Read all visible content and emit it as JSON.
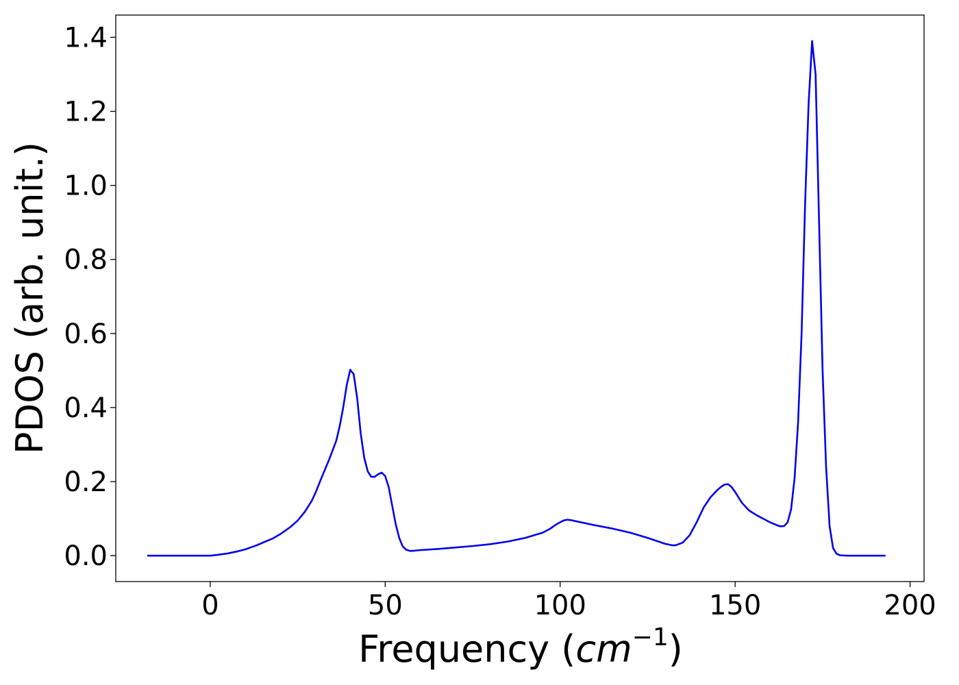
{
  "colors": {
    "series": "#0000ee",
    "axes": "#000000",
    "background": "#ffffff"
  },
  "chart_data": {
    "type": "line",
    "title": "",
    "xlabel": "Frequency (cm⁻¹)",
    "xlabel_parts": {
      "prefix": "Frequency (",
      "math": "cm",
      "superscript": "−1",
      "suffix": ")"
    },
    "ylabel": "PDOS (arb. unit.)",
    "xlim": [
      -27,
      204
    ],
    "ylim": [
      -0.07,
      1.46
    ],
    "xticks": [
      0,
      50,
      100,
      150,
      200
    ],
    "xtick_labels": [
      "0",
      "50",
      "100",
      "150",
      "200"
    ],
    "yticks": [
      0.0,
      0.2,
      0.4,
      0.6,
      0.8,
      1.0,
      1.2,
      1.4
    ],
    "ytick_labels": [
      "0.0",
      "0.2",
      "0.4",
      "0.6",
      "0.8",
      "1.0",
      "1.2",
      "1.4"
    ],
    "grid": false,
    "legend": "none",
    "series": [
      {
        "x": [
          -18,
          -10,
          -5,
          0,
          2,
          5,
          8,
          10,
          13,
          15,
          18,
          20,
          23,
          25,
          27,
          29,
          30,
          32,
          34,
          35,
          36,
          37,
          38,
          39,
          40,
          41,
          42,
          43,
          44,
          45,
          46,
          47,
          48,
          49,
          50,
          51,
          52,
          53,
          54,
          55,
          56,
          57,
          58,
          60,
          65,
          70,
          75,
          80,
          85,
          90,
          95,
          97,
          99,
          100,
          101,
          102,
          103,
          105,
          110,
          115,
          120,
          125,
          130,
          132,
          133,
          135,
          137,
          139,
          141,
          143,
          145,
          146,
          147,
          148,
          149,
          150,
          152,
          154,
          156,
          158,
          160,
          162,
          163,
          164,
          165,
          166,
          167,
          168,
          169,
          170,
          171,
          172,
          173,
          174,
          175,
          176,
          177,
          178,
          179,
          180,
          182,
          185,
          190,
          193
        ],
        "y": [
          0.0,
          0.0,
          0.0,
          0.0,
          0.002,
          0.006,
          0.012,
          0.017,
          0.027,
          0.035,
          0.047,
          0.058,
          0.078,
          0.095,
          0.118,
          0.148,
          0.168,
          0.215,
          0.26,
          0.285,
          0.31,
          0.35,
          0.4,
          0.46,
          0.502,
          0.49,
          0.425,
          0.33,
          0.265,
          0.228,
          0.213,
          0.213,
          0.22,
          0.224,
          0.215,
          0.185,
          0.135,
          0.085,
          0.048,
          0.025,
          0.016,
          0.013,
          0.013,
          0.015,
          0.018,
          0.022,
          0.026,
          0.031,
          0.038,
          0.048,
          0.062,
          0.072,
          0.085,
          0.09,
          0.095,
          0.097,
          0.096,
          0.092,
          0.082,
          0.073,
          0.062,
          0.048,
          0.032,
          0.028,
          0.028,
          0.035,
          0.055,
          0.09,
          0.13,
          0.158,
          0.178,
          0.186,
          0.192,
          0.193,
          0.185,
          0.172,
          0.142,
          0.122,
          0.11,
          0.1,
          0.09,
          0.082,
          0.079,
          0.08,
          0.09,
          0.125,
          0.21,
          0.36,
          0.6,
          0.95,
          1.22,
          1.39,
          1.3,
          0.9,
          0.5,
          0.24,
          0.08,
          0.02,
          0.005,
          0.001,
          0.0,
          0.0,
          0.0,
          0.0
        ]
      }
    ]
  }
}
